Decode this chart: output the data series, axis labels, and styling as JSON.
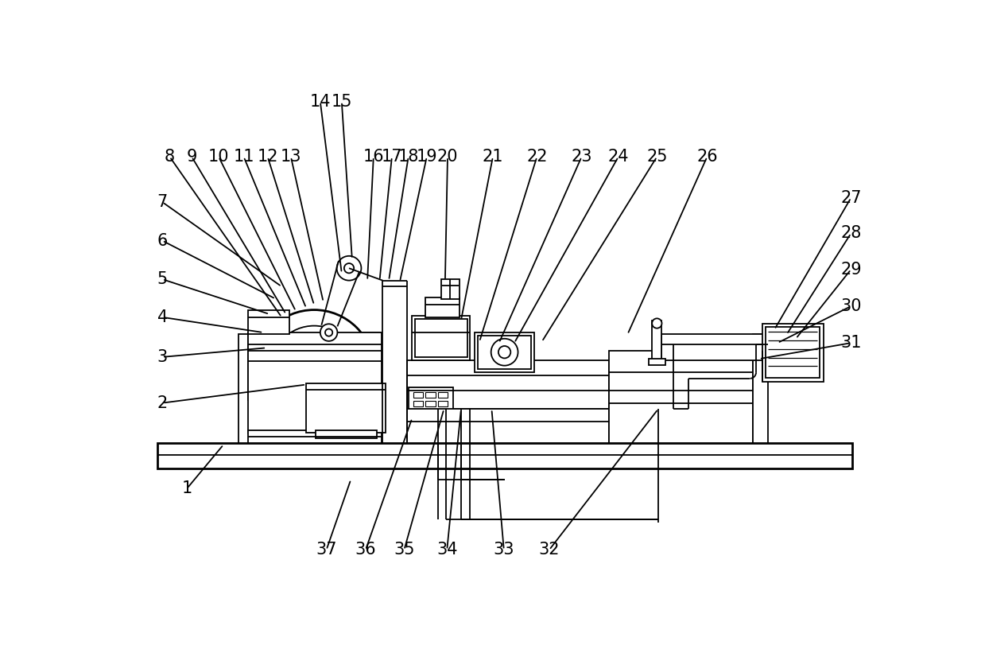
{
  "bg_color": "#ffffff",
  "lc": "#000000",
  "lw": 1.3,
  "tlw": 2.0,
  "lfs": 15,
  "annotations": [
    [
      "1",
      100,
      670,
      160,
      598
    ],
    [
      "2",
      60,
      530,
      295,
      500
    ],
    [
      "3",
      60,
      455,
      230,
      440
    ],
    [
      "4",
      60,
      390,
      225,
      415
    ],
    [
      "5",
      60,
      328,
      235,
      385
    ],
    [
      "6",
      60,
      265,
      245,
      360
    ],
    [
      "7",
      60,
      202,
      255,
      340
    ],
    [
      "8",
      72,
      128,
      255,
      390
    ],
    [
      "9",
      108,
      128,
      262,
      385
    ],
    [
      "10",
      152,
      128,
      278,
      380
    ],
    [
      "11",
      193,
      128,
      295,
      375
    ],
    [
      "12",
      232,
      128,
      308,
      370
    ],
    [
      "13",
      270,
      128,
      323,
      365
    ],
    [
      "14",
      318,
      38,
      353,
      318
    ],
    [
      "15",
      353,
      38,
      370,
      295
    ],
    [
      "16",
      405,
      128,
      395,
      330
    ],
    [
      "17",
      435,
      128,
      415,
      330
    ],
    [
      "18",
      462,
      128,
      430,
      330
    ],
    [
      "19",
      492,
      128,
      448,
      332
    ],
    [
      "20",
      526,
      128,
      522,
      330
    ],
    [
      "21",
      600,
      128,
      548,
      395
    ],
    [
      "22",
      672,
      128,
      578,
      430
    ],
    [
      "23",
      745,
      128,
      610,
      432
    ],
    [
      "24",
      805,
      128,
      635,
      432
    ],
    [
      "25",
      868,
      128,
      680,
      430
    ],
    [
      "26",
      950,
      128,
      820,
      418
    ],
    [
      "27",
      1185,
      195,
      1060,
      410
    ],
    [
      "28",
      1185,
      253,
      1080,
      418
    ],
    [
      "29",
      1185,
      312,
      1095,
      425
    ],
    [
      "30",
      1185,
      372,
      1065,
      432
    ],
    [
      "31",
      1185,
      432,
      1035,
      458
    ],
    [
      "37",
      328,
      770,
      368,
      655
    ],
    [
      "36",
      392,
      770,
      468,
      555
    ],
    [
      "35",
      455,
      770,
      520,
      540
    ],
    [
      "34",
      525,
      770,
      548,
      540
    ],
    [
      "33",
      618,
      770,
      598,
      540
    ],
    [
      "32",
      692,
      770,
      870,
      540
    ]
  ]
}
